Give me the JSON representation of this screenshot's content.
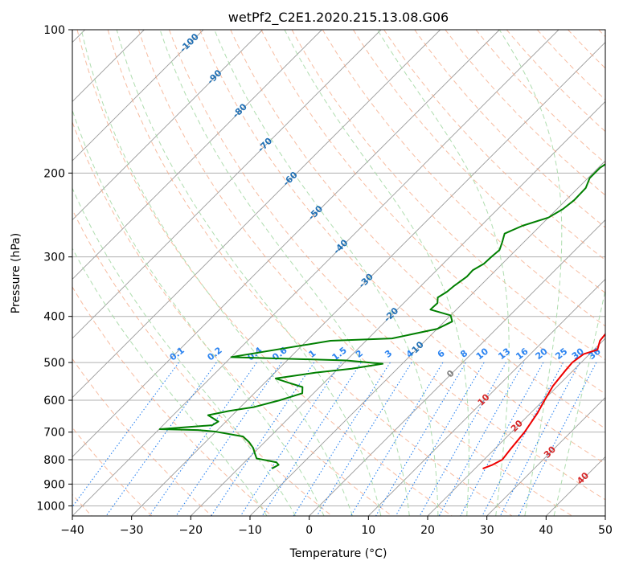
{
  "chart_data": {
    "type": "line",
    "title": "wetPf2_C2E1.2020.215.13.08.G06",
    "xlabel": "Temperature (°C)",
    "ylabel": "Pressure (hPa)",
    "xlim": [
      -40,
      50
    ],
    "ylim": [
      1050,
      100
    ],
    "y_scale": "log",
    "grid": true,
    "x_ticks": [
      -40,
      -30,
      -20,
      -10,
      0,
      10,
      20,
      30,
      40,
      50
    ],
    "y_ticks": [
      100,
      200,
      300,
      400,
      500,
      600,
      700,
      800,
      900,
      1000
    ],
    "series": [
      {
        "color": "#ee0000",
        "points": [
          [
            21.3,
            835
          ],
          [
            22.3,
            820
          ],
          [
            23.1,
            800
          ],
          [
            22.7,
            760
          ],
          [
            22.2,
            700
          ],
          [
            21.2,
            640
          ],
          [
            20.2,
            600
          ],
          [
            19.2,
            560
          ],
          [
            18.7,
            520
          ],
          [
            18.5,
            500
          ],
          [
            19.0,
            480
          ],
          [
            20.6,
            470
          ],
          [
            19.5,
            450
          ],
          [
            19.2,
            430
          ],
          [
            17.5,
            410
          ],
          [
            16.0,
            395
          ],
          [
            14.2,
            375
          ],
          [
            12.5,
            355
          ],
          [
            11.1,
            335
          ],
          [
            10.0,
            315
          ],
          [
            8.8,
            295
          ],
          [
            7.9,
            275
          ],
          [
            6.9,
            255
          ],
          [
            5.9,
            235
          ],
          [
            4.9,
            215
          ],
          [
            4.1,
            195
          ],
          [
            3.3,
            175
          ],
          [
            2.5,
            155
          ],
          [
            1.7,
            140
          ],
          [
            1.5,
            130
          ],
          [
            2.5,
            120
          ],
          [
            4.1,
            112
          ],
          [
            5.9,
            106
          ],
          [
            7.5,
            102
          ],
          [
            8.2,
            100
          ]
        ]
      },
      {
        "color": "#007f00",
        "points": [
          [
            -14.3,
            835
          ],
          [
            -13.8,
            820
          ],
          [
            -14.6,
            810
          ],
          [
            -18.6,
            795
          ],
          [
            -19.8,
            775
          ],
          [
            -21.0,
            755
          ],
          [
            -22.6,
            735
          ],
          [
            -24.6,
            715
          ],
          [
            -30.2,
            698
          ],
          [
            -33.3,
            693
          ],
          [
            -39.9,
            690
          ],
          [
            -31.7,
            677
          ],
          [
            -31.3,
            665
          ],
          [
            -34.1,
            645
          ],
          [
            -31.3,
            632
          ],
          [
            -27.7,
            620
          ],
          [
            -24.5,
            600
          ],
          [
            -21.9,
            580
          ],
          [
            -22.9,
            563
          ],
          [
            -25.8,
            552
          ],
          [
            -28.9,
            540
          ],
          [
            -23.1,
            525
          ],
          [
            -17.7,
            515
          ],
          [
            -13.3,
            503
          ],
          [
            -20.0,
            495
          ],
          [
            -40.0,
            487
          ],
          [
            -26.0,
            450
          ],
          [
            -16.0,
            445
          ],
          [
            -10.0,
            425
          ],
          [
            -8.7,
            410
          ],
          [
            -10.0,
            398
          ],
          [
            -14.4,
            387
          ],
          [
            -14.3,
            375
          ],
          [
            -15.2,
            365
          ],
          [
            -14.6,
            355
          ],
          [
            -14.4,
            345
          ],
          [
            -13.8,
            330
          ],
          [
            -13.9,
            320
          ],
          [
            -13.1,
            310
          ],
          [
            -13.0,
            300
          ],
          [
            -12.8,
            290
          ],
          [
            -13.6,
            280
          ],
          [
            -14.7,
            268
          ],
          [
            -13.0,
            258
          ],
          [
            -10.0,
            248
          ],
          [
            -9.0,
            238
          ],
          [
            -8.6,
            228
          ],
          [
            -8.7,
            215
          ],
          [
            -9.7,
            205
          ],
          [
            -9.7,
            195
          ],
          [
            -8.8,
            185
          ],
          [
            -8.0,
            175
          ],
          [
            -7.5,
            165
          ],
          [
            -5.9,
            155
          ],
          [
            -3.1,
            145
          ],
          [
            -0.5,
            135
          ],
          [
            2.2,
            125
          ],
          [
            3.7,
            115
          ],
          [
            4.7,
            108
          ],
          [
            5.4,
            103
          ],
          [
            5.7,
            100
          ]
        ]
      }
    ],
    "dry_adiabat_labels": [
      "-100",
      "-90",
      "-80",
      "-70",
      "-60",
      "-50",
      "-40",
      "-30",
      "-20",
      "-10",
      "0",
      "10",
      "20",
      "30",
      "40"
    ],
    "mixing_ratio_labels": [
      "0.1",
      "0.2",
      "0.4",
      "0.6",
      "1",
      "1.5",
      "2",
      "3",
      "4",
      "6",
      "8",
      "10",
      "13",
      "16",
      "20",
      "25",
      "30",
      "36"
    ],
    "mixing_ratio_values": [
      0.1,
      0.2,
      0.4,
      0.6,
      1,
      1.5,
      2,
      3,
      4,
      6,
      8,
      10,
      13,
      16,
      20,
      25,
      30,
      36
    ],
    "colors": {
      "temperature": "#ee0000",
      "dewpoint": "#007f00",
      "isotherm": "#9a9a9a",
      "dry_adiabat": "#f4a582",
      "moist_adiabat": "#a6d9a6",
      "mixing_ratio": "#2b83f0",
      "cold_label": "#1f6fb4",
      "warm_label": "#d62728",
      "zero_label": "#808080"
    }
  }
}
